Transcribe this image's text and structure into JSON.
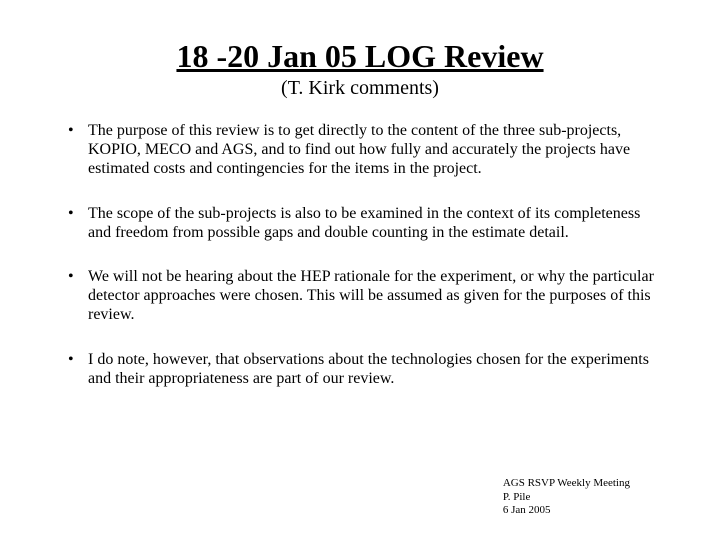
{
  "title": "18 -20 Jan 05 LOG Review",
  "subtitle": "(T. Kirk comments)",
  "bullets": [
    "The purpose of this review is to get directly to the content of the three sub-projects, KOPIO, MECO and AGS, and to find out how fully and accurately the projects have estimated costs and contingencies for the items in the project.",
    "The scope of the sub-projects is also to be examined in the context of its completeness and freedom from possible gaps and double counting in the estimate detail.",
    "We will not be hearing about the HEP rationale for the experiment, or why the particular detector approaches were chosen.  This will be assumed as given for the purposes of this review.",
    "I do note, however, that observations about the technologies chosen for the experiments and their appropriateness are part of our review."
  ],
  "footer": {
    "line1": "AGS RSVP Weekly Meeting",
    "line2": "P. Pile",
    "line3": "6 Jan 2005"
  }
}
